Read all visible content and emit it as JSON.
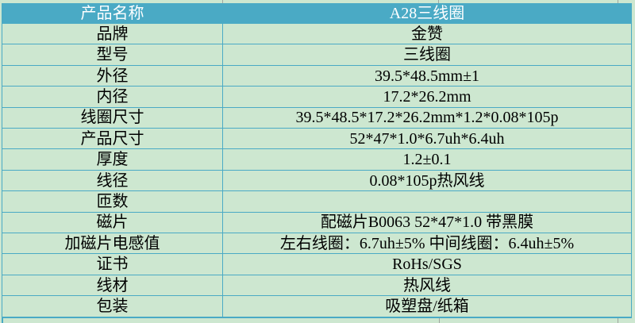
{
  "colors": {
    "header_fill": "#4aaac5",
    "cell_fill": "#cde7d0",
    "grid_line": "#4aaac5",
    "header_text": "#ffffff",
    "body_text": "#000000",
    "margin_gridline_gray": "#a0a6a0"
  },
  "table": {
    "header": {
      "label": "产品名称",
      "value": "A28三线圈"
    },
    "rows": [
      {
        "label": "品牌",
        "value": "金赞"
      },
      {
        "label": "型号",
        "value": "三线圈"
      },
      {
        "label": "外径",
        "value": "39.5*48.5mm±1"
      },
      {
        "label": "内径",
        "value": "17.2*26.2mm"
      },
      {
        "label": "线圈尺寸",
        "value": "39.5*48.5*17.2*26.2mm*1.2*0.08*105p"
      },
      {
        "label": "产品尺寸",
        "value": "52*47*1.0*6.7uh*6.4uh"
      },
      {
        "label": "厚度",
        "value": "1.2±0.1"
      },
      {
        "label": "线径",
        "value": "0.08*105p热风线"
      },
      {
        "label": "匝数",
        "value": ""
      },
      {
        "label": "磁片",
        "value": "配磁片B0063 52*47*1.0 带黑膜"
      },
      {
        "label": "加磁片电感值",
        "value": "左右线圈：6.7uh±5% 中间线圈：6.4uh±5%"
      },
      {
        "label": "证书",
        "value": "RoHs/SGS"
      },
      {
        "label": "线材",
        "value": "热风线"
      },
      {
        "label": "包装",
        "value": "吸塑盘/纸箱"
      }
    ]
  }
}
